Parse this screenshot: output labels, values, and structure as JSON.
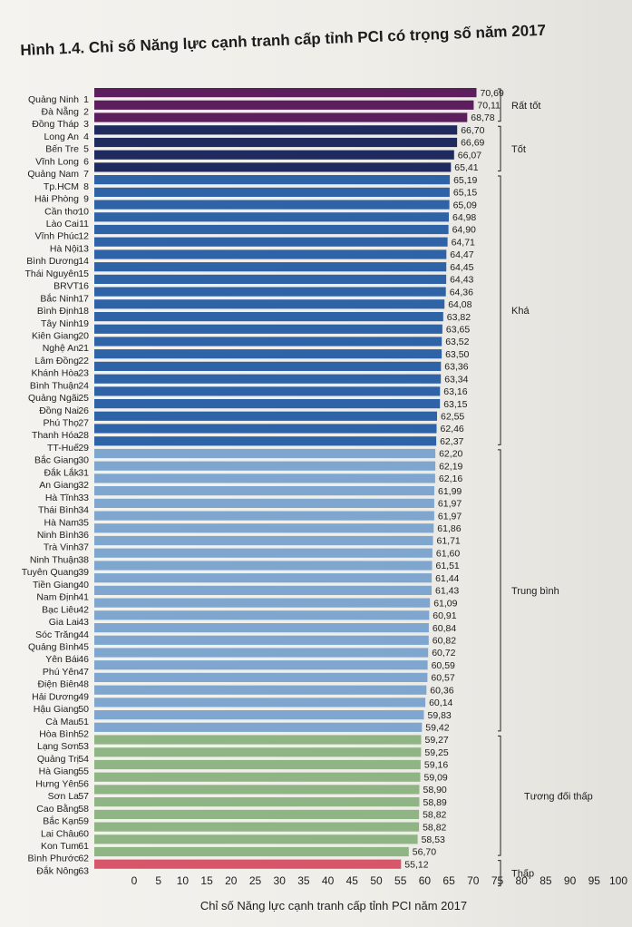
{
  "chart_data": {
    "type": "bar",
    "orientation": "horizontal",
    "title": "Hình 1.4. Chỉ số Năng lực cạnh tranh cấp tỉnh PCI có trọng số năm 2017",
    "xlabel": "Chỉ số Năng lực cạnh tranh cấp tỉnh PCI năm 2017",
    "ylabel": "",
    "xlim": [
      0,
      100
    ],
    "xticks": [
      "0",
      "5",
      "10",
      "15",
      "20",
      "25",
      "30",
      "35",
      "40",
      "45",
      "50",
      "55",
      "60",
      "65",
      "70",
      "75",
      "80",
      "85",
      "90",
      "95",
      "100"
    ],
    "grid": false,
    "categories": [
      {
        "name": "Quảng Ninh",
        "rank": "1"
      },
      {
        "name": "Đà Nẵng",
        "rank": "2"
      },
      {
        "name": "Đồng Tháp",
        "rank": "3"
      },
      {
        "name": "Long An",
        "rank": "4"
      },
      {
        "name": "Bến Tre",
        "rank": "5"
      },
      {
        "name": "Vĩnh Long",
        "rank": "6"
      },
      {
        "name": "Quảng Nam",
        "rank": "7"
      },
      {
        "name": "Tp.HCM",
        "rank": "8"
      },
      {
        "name": "Hải Phòng",
        "rank": "9"
      },
      {
        "name": "Cần thơ",
        "rank": "10"
      },
      {
        "name": "Lào Cai",
        "rank": "11"
      },
      {
        "name": "Vĩnh Phúc",
        "rank": "12"
      },
      {
        "name": "Hà Nội",
        "rank": "13"
      },
      {
        "name": "Bình Dương",
        "rank": "14"
      },
      {
        "name": "Thái Nguyên",
        "rank": "15"
      },
      {
        "name": "BRVT",
        "rank": "16"
      },
      {
        "name": "Bắc Ninh",
        "rank": "17"
      },
      {
        "name": "Bình Định",
        "rank": "18"
      },
      {
        "name": "Tây Ninh",
        "rank": "19"
      },
      {
        "name": "Kiên Giang",
        "rank": "20"
      },
      {
        "name": "Nghệ An",
        "rank": "21"
      },
      {
        "name": "Lâm Đồng",
        "rank": "22"
      },
      {
        "name": "Khánh Hòa",
        "rank": "23"
      },
      {
        "name": "Bình Thuận",
        "rank": "24"
      },
      {
        "name": "Quảng Ngãi",
        "rank": "25"
      },
      {
        "name": "Đồng Nai",
        "rank": "26"
      },
      {
        "name": "Phú Thọ",
        "rank": "27"
      },
      {
        "name": "Thanh Hóa",
        "rank": "28"
      },
      {
        "name": "TT-Huế",
        "rank": "29"
      },
      {
        "name": "Bắc Giang",
        "rank": "30"
      },
      {
        "name": "Đắk Lắk",
        "rank": "31"
      },
      {
        "name": "An Giang",
        "rank": "32"
      },
      {
        "name": "Hà Tĩnh",
        "rank": "33"
      },
      {
        "name": "Thái Bình",
        "rank": "34"
      },
      {
        "name": "Hà Nam",
        "rank": "35"
      },
      {
        "name": "Ninh Bình",
        "rank": "36"
      },
      {
        "name": "Trà Vinh",
        "rank": "37"
      },
      {
        "name": "Ninh Thuận",
        "rank": "38"
      },
      {
        "name": "Tuyên Quang",
        "rank": "39"
      },
      {
        "name": "Tiền Giang",
        "rank": "40"
      },
      {
        "name": "Nam Định",
        "rank": "41"
      },
      {
        "name": "Bạc Liêu",
        "rank": "42"
      },
      {
        "name": "Gia Lai",
        "rank": "43"
      },
      {
        "name": "Sóc Trăng",
        "rank": "44"
      },
      {
        "name": "Quảng Bình",
        "rank": "45"
      },
      {
        "name": "Yên Bái",
        "rank": "46"
      },
      {
        "name": "Phú Yên",
        "rank": "47"
      },
      {
        "name": "Điện Biên",
        "rank": "48"
      },
      {
        "name": "Hải Dương",
        "rank": "49"
      },
      {
        "name": "Hậu Giang",
        "rank": "50"
      },
      {
        "name": "Cà Mau",
        "rank": "51"
      },
      {
        "name": "Hòa Bình",
        "rank": "52"
      },
      {
        "name": "Lạng Sơn",
        "rank": "53"
      },
      {
        "name": "Quảng Trị",
        "rank": "54"
      },
      {
        "name": "Hà Giang",
        "rank": "55"
      },
      {
        "name": "Hưng Yên",
        "rank": "56"
      },
      {
        "name": "Sơn La",
        "rank": "57"
      },
      {
        "name": "Cao Bằng",
        "rank": "58"
      },
      {
        "name": "Bắc Kạn",
        "rank": "59"
      },
      {
        "name": "Lai Châu",
        "rank": "60"
      },
      {
        "name": "Kon Tum",
        "rank": "61"
      },
      {
        "name": "Bình Phước",
        "rank": "62"
      },
      {
        "name": "Đắk Nông",
        "rank": "63"
      }
    ],
    "value_labels": [
      "70,69",
      "70,11",
      "68,78",
      "66,70",
      "66,69",
      "66,07",
      "65,41",
      "65,19",
      "65,15",
      "65,09",
      "64,98",
      "64,90",
      "64,71",
      "64,47",
      "64,45",
      "64,43",
      "64,36",
      "64,08",
      "63,82",
      "63,65",
      "63,52",
      "63,50",
      "63,36",
      "63,34",
      "63,16",
      "63,15",
      "62,55",
      "62,46",
      "62,37",
      "62,20",
      "62,19",
      "62,16",
      "61,99",
      "61,97",
      "61,97",
      "61,86",
      "61,71",
      "61,60",
      "61,51",
      "61,44",
      "61,43",
      "61,09",
      "60,91",
      "60,84",
      "60,82",
      "60,72",
      "60,59",
      "60,57",
      "60,36",
      "60,14",
      "59,83",
      "59,42",
      "59,27",
      "59,25",
      "59,16",
      "59,09",
      "58,90",
      "58,89",
      "58,82",
      "58,82",
      "58,53",
      "56,70",
      "55,12"
    ],
    "values": [
      70.69,
      70.11,
      68.78,
      66.7,
      66.69,
      66.07,
      65.41,
      65.19,
      65.15,
      65.09,
      64.98,
      64.9,
      64.71,
      64.47,
      64.45,
      64.43,
      64.36,
      64.08,
      63.82,
      63.65,
      63.52,
      63.5,
      63.36,
      63.34,
      63.16,
      63.15,
      62.55,
      62.46,
      62.37,
      62.2,
      62.19,
      62.16,
      61.99,
      61.97,
      61.97,
      61.86,
      61.71,
      61.6,
      61.51,
      61.44,
      61.43,
      61.09,
      60.91,
      60.84,
      60.82,
      60.72,
      60.59,
      60.57,
      60.36,
      60.14,
      59.83,
      59.42,
      59.27,
      59.25,
      59.16,
      59.09,
      58.9,
      58.89,
      58.82,
      58.82,
      58.53,
      56.7,
      55.12
    ],
    "groups": [
      {
        "name": "Rất tốt",
        "first": 1,
        "last": 3,
        "color": "#5c1e5c"
      },
      {
        "name": "Tốt",
        "first": 4,
        "last": 7,
        "color": "#1f2a5e"
      },
      {
        "name": "Khá",
        "first": 8,
        "last": 29,
        "color": "#2f63a8"
      },
      {
        "name": "Trung bình",
        "first": 30,
        "last": 52,
        "color": "#7ea6cf"
      },
      {
        "name": "Tương đối thấp",
        "first": 53,
        "last": 62,
        "color": "#8fb585"
      },
      {
        "name": "Thấp",
        "first": 63,
        "last": 63,
        "color": "#d8566a"
      }
    ]
  }
}
